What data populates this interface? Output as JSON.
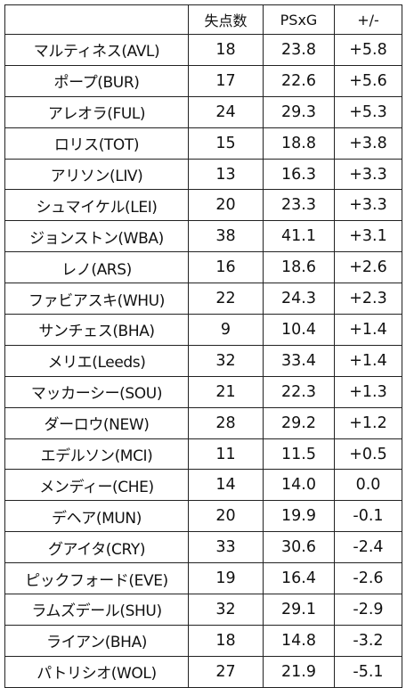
{
  "table": {
    "headers": [
      "",
      "失点数",
      "PSxG",
      "+/-"
    ],
    "rows": [
      {
        "name": "マルティネス(AVL)",
        "goals_against": "18",
        "psxg": "23.8",
        "diff": "+5.8"
      },
      {
        "name": "ポープ(BUR)",
        "goals_against": "17",
        "psxg": "22.6",
        "diff": "+5.6"
      },
      {
        "name": "アレオラ(FUL)",
        "goals_against": "24",
        "psxg": "29.3",
        "diff": "+5.3"
      },
      {
        "name": "ロリス(TOT)",
        "goals_against": "15",
        "psxg": "18.8",
        "diff": "+3.8"
      },
      {
        "name": "アリソン(LIV)",
        "goals_against": "13",
        "psxg": "16.3",
        "diff": "+3.3"
      },
      {
        "name": "シュマイケル(LEI)",
        "goals_against": "20",
        "psxg": "23.3",
        "diff": "+3.3"
      },
      {
        "name": "ジョンストン(WBA)",
        "goals_against": "38",
        "psxg": "41.1",
        "diff": "+3.1"
      },
      {
        "name": "レノ(ARS)",
        "goals_against": "16",
        "psxg": "18.6",
        "diff": "+2.6"
      },
      {
        "name": "ファビアスキ(WHU)",
        "goals_against": "22",
        "psxg": "24.3",
        "diff": "+2.3"
      },
      {
        "name": "サンチェス(BHA)",
        "goals_against": "9",
        "psxg": "10.4",
        "diff": "+1.4"
      },
      {
        "name": "メリエ(Leeds)",
        "goals_against": "32",
        "psxg": "33.4",
        "diff": "+1.4"
      },
      {
        "name": "マッカーシー(SOU)",
        "goals_against": "21",
        "psxg": "22.3",
        "diff": "+1.3"
      },
      {
        "name": "ダーロウ(NEW)",
        "goals_against": "28",
        "psxg": "29.2",
        "diff": "+1.2"
      },
      {
        "name": "エデルソン(MCI)",
        "goals_against": "11",
        "psxg": "11.5",
        "diff": "+0.5"
      },
      {
        "name": "メンディー(CHE)",
        "goals_against": "14",
        "psxg": "14.0",
        "diff": "0.0"
      },
      {
        "name": "デヘア(MUN)",
        "goals_against": "20",
        "psxg": "19.9",
        "diff": "-0.1"
      },
      {
        "name": "グアイタ(CRY)",
        "goals_against": "33",
        "psxg": "30.6",
        "diff": "-2.4"
      },
      {
        "name": "ピックフォード(EVE)",
        "goals_against": "19",
        "psxg": "16.4",
        "diff": "-2.6"
      },
      {
        "name": "ラムズデール(SHU)",
        "goals_against": "32",
        "psxg": "29.1",
        "diff": "-2.9"
      },
      {
        "name": "ライアン(BHA)",
        "goals_against": "18",
        "psxg": "14.8",
        "diff": "-3.2"
      },
      {
        "name": "パトリシオ(WOL)",
        "goals_against": "27",
        "psxg": "21.9",
        "diff": "-5.1"
      }
    ]
  }
}
